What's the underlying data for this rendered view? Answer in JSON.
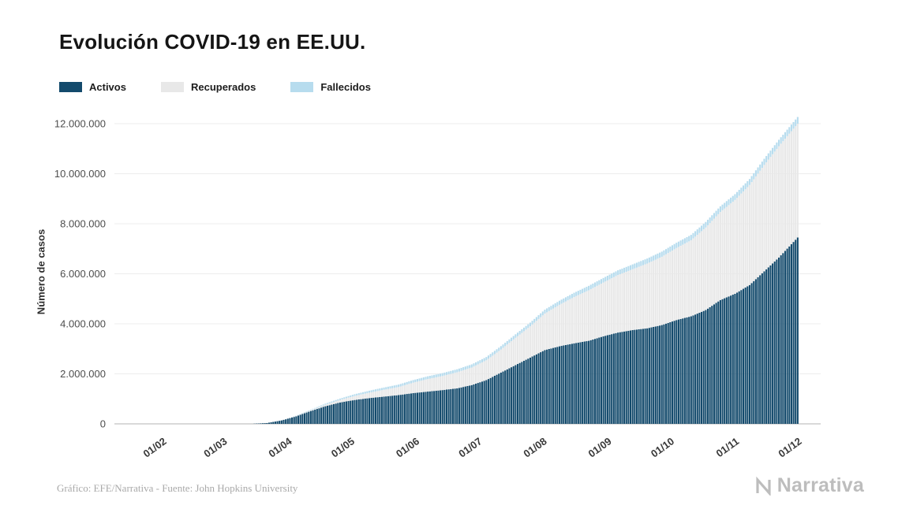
{
  "header": {
    "title": "Evolución COVID-19 en EE.UU."
  },
  "legend": [
    {
      "label": "Activos",
      "color": "#134a6c"
    },
    {
      "label": "Recuperados",
      "color": "#e8e8e8"
    },
    {
      "label": "Fallecidos",
      "color": "#b7dcee"
    }
  ],
  "footer": {
    "credit": "Gráfico: EFE/Narrativa - Fuente: John Hopkins University",
    "logo_text": "Narrativa"
  },
  "chart_data": {
    "type": "bar",
    "stacked": true,
    "title": "Evolución COVID-19 en EE.UU.",
    "xlabel": "",
    "ylabel": "Número de casos",
    "ylim": [
      0,
      12000000
    ],
    "grid": "horizontal",
    "legend_position": "top-left",
    "ytick_values": [
      0,
      2000000,
      4000000,
      6000000,
      8000000,
      10000000,
      12000000
    ],
    "ytick_labels": [
      "0",
      "2.000.000",
      "4.000.000",
      "6.000.000",
      "8.000.000",
      "10.000.000",
      "12.000.000"
    ],
    "xtick_dates": [
      "2020-02-01",
      "2020-03-01",
      "2020-04-01",
      "2020-05-01",
      "2020-06-01",
      "2020-07-01",
      "2020-08-01",
      "2020-09-01",
      "2020-10-01",
      "2020-11-01",
      "2020-12-01"
    ],
    "xtick_labels": [
      "01/02",
      "01/03",
      "01/04",
      "01/05",
      "01/06",
      "01/07",
      "01/08",
      "01/09",
      "01/10",
      "01/11",
      "01/12"
    ],
    "x_domain": [
      "2020-01-09",
      "2020-12-12"
    ],
    "dates": [
      "2020-01-22",
      "2020-02-01",
      "2020-02-15",
      "2020-03-01",
      "2020-03-08",
      "2020-03-15",
      "2020-03-22",
      "2020-03-29",
      "2020-04-05",
      "2020-04-12",
      "2020-04-19",
      "2020-04-26",
      "2020-05-03",
      "2020-05-10",
      "2020-05-17",
      "2020-05-24",
      "2020-05-31",
      "2020-06-07",
      "2020-06-14",
      "2020-06-21",
      "2020-06-28",
      "2020-07-05",
      "2020-07-12",
      "2020-07-19",
      "2020-07-26",
      "2020-08-02",
      "2020-08-09",
      "2020-08-16",
      "2020-08-23",
      "2020-08-30",
      "2020-09-06",
      "2020-09-13",
      "2020-09-20",
      "2020-09-27",
      "2020-10-04",
      "2020-10-11",
      "2020-10-18",
      "2020-10-25",
      "2020-11-01",
      "2020-11-08",
      "2020-11-15",
      "2020-11-22",
      "2020-12-01"
    ],
    "series": [
      {
        "name": "Activos",
        "color": "#134a6c",
        "values": [
          1,
          8,
          15,
          75,
          550,
          3400,
          32500,
          137000,
          302000,
          515000,
          705000,
          855000,
          955000,
          1030000,
          1090000,
          1150000,
          1230000,
          1290000,
          1350000,
          1420000,
          1550000,
          1750000,
          2050000,
          2350000,
          2650000,
          2950000,
          3100000,
          3220000,
          3320000,
          3500000,
          3650000,
          3750000,
          3820000,
          3950000,
          4150000,
          4300000,
          4550000,
          4950000,
          5200000,
          5550000,
          6100000,
          6650000,
          7450000
        ]
      },
      {
        "name": "Recuperados",
        "color": "#e8e8e8",
        "values": [
          0,
          0,
          3,
          7,
          10,
          60,
          200,
          4600,
          15000,
          32000,
          62000,
          102000,
          162000,
          216000,
          272000,
          322000,
          416000,
          502000,
          562000,
          642000,
          702000,
          792000,
          922000,
          1090000,
          1250000,
          1460000,
          1660000,
          1850000,
          2020000,
          2150000,
          2300000,
          2430000,
          2590000,
          2730000,
          2880000,
          3040000,
          3300000,
          3520000,
          3750000,
          4000000,
          4250000,
          4450000,
          4550000
        ]
      },
      {
        "name": "Fallecidos",
        "color": "#b7dcee",
        "values": [
          0,
          0,
          0,
          1,
          22,
          70,
          420,
          2500,
          9600,
          22000,
          41000,
          54000,
          68000,
          80000,
          90000,
          98500,
          104500,
          110500,
          116000,
          120500,
          125500,
          130500,
          135500,
          141000,
          147500,
          155500,
          163000,
          170500,
          177000,
          183500,
          189500,
          194500,
          200000,
          205500,
          210500,
          215500,
          221000,
          227000,
          232000,
          240000,
          248500,
          257500,
          268000
        ]
      }
    ]
  }
}
